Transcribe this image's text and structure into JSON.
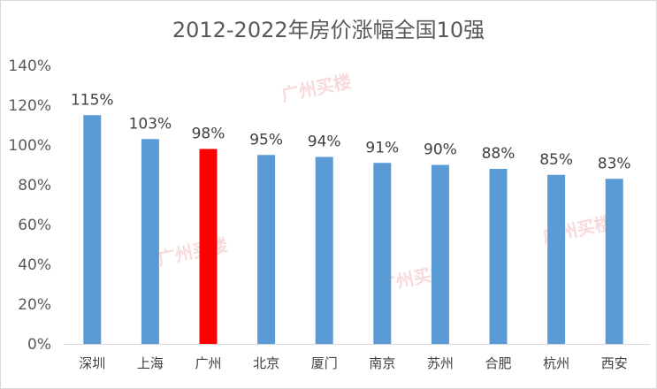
{
  "chart_data": {
    "type": "bar",
    "title": "2012-2022年房价涨幅全国10强",
    "categories": [
      "深圳",
      "上海",
      "广州",
      "北京",
      "厦门",
      "南京",
      "苏州",
      "合肥",
      "杭州",
      "西安"
    ],
    "values": [
      115,
      103,
      98,
      95,
      94,
      91,
      90,
      88,
      85,
      83
    ],
    "value_unit": "%",
    "ylim": [
      0,
      140
    ],
    "yticks": [
      "0%",
      "20%",
      "40%",
      "60%",
      "80%",
      "100%",
      "120%",
      "140%"
    ],
    "data_labels": [
      "115%",
      "103%",
      "98%",
      "95%",
      "94%",
      "91%",
      "90%",
      "88%",
      "85%",
      "83%"
    ],
    "grid": false,
    "legend": "none",
    "colors": {
      "default": "#5b9bd5",
      "highlight": "#ff0000",
      "highlight_category": "广州"
    }
  },
  "watermark": "广州买楼"
}
